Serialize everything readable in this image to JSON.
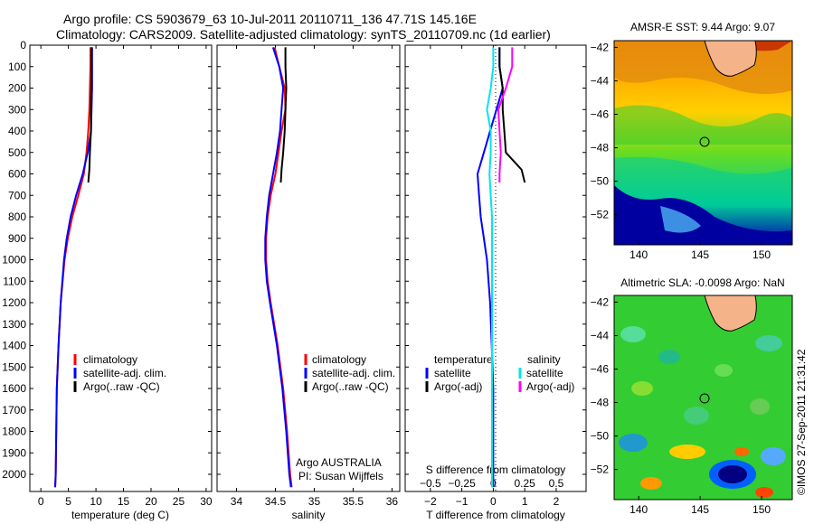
{
  "header": {
    "line1": "Argo profile: CS 5903679_63 10-Jul-2011 20110711_136 47.71S 145.16E",
    "line2": "Climatology: CARS2009. Satellite-adjusted climatology: synTS_20110709.nc (1d earlier)"
  },
  "copyright": "©IMOS 27-Sep-2011 21:31:42",
  "colors": {
    "climatology": "#ff0000",
    "satellite": "#0000ff",
    "argo": "#000000",
    "satellite_salinity": "#00e5ee",
    "argo_salinity": "#ff00ff"
  },
  "chart_data": [
    {
      "type": "line",
      "panel": "temperature",
      "xlabel": "temperature (deg C)",
      "ylabel": "",
      "xlim": [
        -2,
        31
      ],
      "ylim": [
        2080,
        0
      ],
      "xticks": [
        0,
        5,
        10,
        15,
        20,
        25,
        30
      ],
      "yticks": [
        0,
        100,
        200,
        300,
        400,
        500,
        600,
        700,
        800,
        900,
        1000,
        1100,
        1200,
        1300,
        1400,
        1500,
        1600,
        1700,
        1800,
        1900,
        2000
      ],
      "legend": [
        "climatology",
        "satellite-adj. clim.",
        "Argo(..raw -QC)"
      ],
      "legend_position": "lower-center",
      "series": [
        {
          "name": "climatology",
          "color": "#ff0000",
          "depth": [
            10,
            100,
            200,
            300,
            400,
            500,
            600,
            700,
            800,
            900,
            1000,
            1200,
            1400,
            1600,
            1800,
            2000,
            2060
          ],
          "values": [
            9.0,
            9.0,
            8.9,
            8.8,
            8.6,
            8.3,
            7.8,
            6.8,
            5.7,
            4.9,
            4.3,
            3.6,
            3.2,
            2.9,
            2.8,
            2.7,
            2.6
          ]
        },
        {
          "name": "satellite-adj. clim.",
          "color": "#0000ff",
          "depth": [
            10,
            100,
            200,
            300,
            400,
            500,
            600,
            700,
            800,
            900,
            1000,
            1200,
            1400,
            1600,
            1800,
            2000,
            2060
          ],
          "values": [
            9.3,
            9.3,
            9.3,
            9.2,
            9.1,
            8.5,
            7.6,
            6.4,
            5.4,
            4.7,
            4.2,
            3.6,
            3.2,
            2.9,
            2.8,
            2.7,
            2.6
          ]
        },
        {
          "name": "Argo(..raw -QC)",
          "color": "#000000",
          "depth": [
            10,
            100,
            200,
            300,
            400,
            500,
            580,
            640
          ],
          "values": [
            9.2,
            9.2,
            9.2,
            9.1,
            9.1,
            8.9,
            8.8,
            8.6
          ]
        }
      ]
    },
    {
      "type": "line",
      "panel": "salinity",
      "xlabel": "salinity",
      "xlim": [
        33.75,
        36.1
      ],
      "ylim": [
        2080,
        0
      ],
      "xticks": [
        34,
        34.5,
        35,
        35.5,
        36
      ],
      "legend": [
        "climatology",
        "satellite-adj. clim.",
        "Argo(..raw -QC)"
      ],
      "legend_position": "lower-right",
      "annotation": [
        "Argo AUSTRALIA",
        "PI: Susan Wijffels"
      ],
      "series": [
        {
          "name": "climatology",
          "color": "#ff0000",
          "depth": [
            10,
            100,
            200,
            300,
            400,
            500,
            600,
            700,
            800,
            900,
            1000,
            1100,
            1200,
            1400,
            1600,
            1800,
            2000,
            2060
          ],
          "values": [
            34.49,
            34.55,
            34.62,
            34.63,
            34.58,
            34.54,
            34.5,
            34.44,
            34.4,
            34.38,
            34.38,
            34.4,
            34.44,
            34.53,
            34.6,
            34.65,
            34.69,
            34.71
          ]
        },
        {
          "name": "satellite-adj. clim.",
          "color": "#0000ff",
          "depth": [
            10,
            100,
            200,
            300,
            400,
            500,
            600,
            700,
            800,
            900,
            1000,
            1100,
            1200,
            1400,
            1600,
            1800,
            2000,
            2060
          ],
          "values": [
            34.47,
            34.55,
            34.6,
            34.58,
            34.56,
            34.52,
            34.47,
            34.42,
            34.39,
            34.37,
            34.37,
            34.39,
            34.43,
            34.52,
            34.59,
            34.64,
            34.68,
            34.7
          ]
        },
        {
          "name": "Argo(..raw -QC)",
          "color": "#000000",
          "depth": [
            10,
            100,
            200,
            300,
            400,
            500,
            580,
            640
          ],
          "values": [
            34.63,
            34.63,
            34.64,
            34.63,
            34.62,
            34.6,
            34.58,
            34.57
          ]
        }
      ]
    },
    {
      "type": "line",
      "panel": "difference",
      "xlabel": "T difference from climatology",
      "xlabel_top": "S difference from climatology",
      "xlim": [
        -2.8,
        2.95
      ],
      "ylim": [
        2080,
        0
      ],
      "xticks": [
        -2,
        -1,
        0,
        1,
        2
      ],
      "xticks_top": [
        -0.5,
        -0.25,
        0,
        0.25,
        0.5
      ],
      "legend_temperature_title": "temperature",
      "legend_salinity_title": "salinity",
      "legend": [
        "satellite",
        "Argo(-adj)",
        "satellite",
        "Argo(-adj)"
      ],
      "series": [
        {
          "name": "temperature satellite",
          "color": "#0000ff",
          "depth": [
            10,
            100,
            200,
            300,
            400,
            500,
            600,
            700,
            800,
            900,
            1000,
            1200,
            1400,
            1600,
            1800,
            2000,
            2060
          ],
          "values": [
            0.2,
            0.2,
            0.3,
            0.1,
            -0.1,
            -0.3,
            -0.5,
            -0.45,
            -0.4,
            -0.3,
            -0.2,
            -0.1,
            -0.05,
            0,
            0,
            0,
            0
          ]
        },
        {
          "name": "temperature Argo(-adj)",
          "color": "#000000",
          "depth": [
            10,
            100,
            200,
            300,
            400,
            500,
            580,
            640
          ],
          "values": [
            0.2,
            0.2,
            0.3,
            0.3,
            0.35,
            0.4,
            0.9,
            1.0
          ]
        },
        {
          "name": "salinity satellite",
          "color": "#00e5ee",
          "depth": [
            10,
            100,
            200,
            300,
            400,
            500,
            600,
            700,
            800,
            900,
            1000,
            1200,
            1400,
            1600,
            1800,
            2000,
            2060
          ],
          "values": [
            0.0,
            0.0,
            -0.02,
            -0.05,
            -0.02,
            -0.02,
            -0.03,
            -0.02,
            -0.01,
            -0.01,
            -0.01,
            -0.01,
            -0.01,
            -0.01,
            -0.01,
            -0.01,
            -0.01
          ]
        },
        {
          "name": "salinity Argo(-adj)",
          "color": "#ff00ff",
          "depth": [
            10,
            100,
            200,
            300,
            400,
            500,
            600,
            640
          ],
          "values": [
            0.15,
            0.15,
            0.1,
            0.04,
            0.05,
            0.06,
            0.05,
            0.05
          ]
        }
      ]
    },
    {
      "type": "heatmap",
      "panel": "sst_map",
      "title": "AMSR-E SST: 9.44 Argo: 9.07",
      "xlim": [
        138,
        152.5
      ],
      "ylim": [
        -53.8,
        -41.6
      ],
      "xticks": [
        140,
        145,
        150
      ],
      "yticks": [
        -42,
        -44,
        -46,
        -48,
        -50,
        -52
      ],
      "argo_position": {
        "lon": 145.16,
        "lat": -47.71
      }
    },
    {
      "type": "heatmap",
      "panel": "sla_map",
      "title": "Altimetric SLA: -0.0098 Argo: NaN",
      "xlim": [
        138,
        152.5
      ],
      "ylim": [
        -53.8,
        -41.6
      ],
      "xticks": [
        140,
        145,
        150
      ],
      "yticks": [
        -42,
        -44,
        -46,
        -48,
        -50,
        -52
      ],
      "argo_position": {
        "lon": 145.16,
        "lat": -47.71
      }
    }
  ]
}
